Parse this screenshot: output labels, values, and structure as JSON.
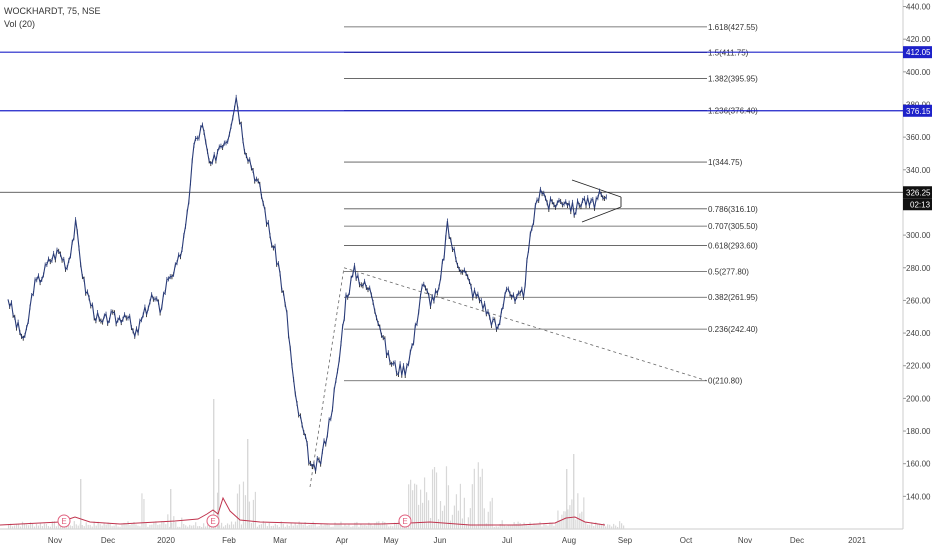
{
  "header": {
    "title": "WOCKHARDT, 75, NSE",
    "indicator": "Vol (20)"
  },
  "colors": {
    "fib": "#555555",
    "blue_line": "#1e22c9",
    "candle_up": "#2a3c78",
    "candle_down": "#111111",
    "volume": "#d8d8d8",
    "volume_ma": "#c0334d",
    "event_marker": "#e0607e",
    "price_tag": "#111111"
  },
  "chart_data": {
    "type": "line",
    "ylim": [
      120,
      444
    ],
    "y_ticks": [
      140,
      160,
      180,
      200,
      220,
      240,
      260,
      280,
      300,
      320,
      340,
      360,
      380,
      400,
      420,
      440
    ],
    "y_tick_labels": [
      "140.00",
      "160.00",
      "180.00",
      "200.00",
      "220.00",
      "240.00",
      "260.00",
      "280.00",
      "300.00",
      "320.00",
      "340.00",
      "360.00",
      "380.00",
      "400.00",
      "420.00",
      "440.00"
    ],
    "x_labels": [
      "Nov",
      "Dec",
      "2020",
      "Feb",
      "Mar",
      "Apr",
      "May",
      "Jun",
      "Jul",
      "Aug",
      "Sep",
      "Oct",
      "Nov",
      "Dec",
      "2021"
    ],
    "series": [
      {
        "x": [
          "Oct-24",
          "Oct-29",
          "Nov-04",
          "Nov-08",
          "Nov-13",
          "Nov-18",
          "Nov-22",
          "Nov-28",
          "Dec-03",
          "Dec-08",
          "Dec-13",
          "Dec-18",
          "Dec-23",
          "Dec-28",
          "Jan-02",
          "Jan-07",
          "Jan-10",
          "Jan-14",
          "Jan-17",
          "Jan-21",
          "Jan-24",
          "Jan-28",
          "Feb-01",
          "Feb-05",
          "Feb-10",
          "Feb-14",
          "Feb-18",
          "Feb-22",
          "Feb-26",
          "Mar-02",
          "Mar-05",
          "Mar-08",
          "Mar-11",
          "Mar-14",
          "Mar-18",
          "Mar-22",
          "Mar-26",
          "Mar-31",
          "Apr-03",
          "Apr-07",
          "Apr-12",
          "Apr-18",
          "Apr-24",
          "May-01",
          "May-05",
          "May-10",
          "May-15",
          "May-20",
          "May-25",
          "May-30",
          "Jun-04",
          "Jun-08",
          "Jun-13",
          "Jun-17",
          "Jun-22",
          "Jun-26",
          "Jul-01",
          "Jul-06",
          "Jul-11",
          "Jul-16",
          "Jul-21",
          "Jul-26",
          "Jul-31",
          "Aug-03",
          "Aug-06",
          "Aug-10",
          "Aug-13",
          "Aug-16",
          "Aug-20",
          "Aug-22",
          "Aug-24",
          "Aug-26"
        ],
        "values": [
          262,
          245,
          235,
          268,
          275,
          285,
          290,
          281,
          306,
          270,
          255,
          245,
          250,
          248,
          253,
          237,
          250,
          262,
          255,
          275,
          280,
          302,
          355,
          366,
          340,
          355,
          360,
          385,
          355,
          340,
          325,
          300,
          282,
          250,
          200,
          178,
          155,
          162,
          185,
          215,
          262,
          278,
          270,
          265,
          245,
          225,
          218,
          218,
          235,
          270,
          260,
          265,
          305,
          285,
          278,
          265,
          260,
          250,
          242,
          270,
          258,
          265,
          305,
          330,
          318,
          320,
          322,
          315,
          322,
          318,
          323,
          320
        ]
      }
    ],
    "volume_note": "volume bars with 20-period moving average",
    "fib_levels": [
      {
        "label": "1.618(427.55)",
        "value": 427.55
      },
      {
        "label": "1.5(411.75)",
        "value": 411.75
      },
      {
        "label": "1.382(395.95)",
        "value": 395.95
      },
      {
        "label": "1.236(376.40)",
        "value": 376.4
      },
      {
        "label": "1(344.75)",
        "value": 344.75
      },
      {
        "label": "0.786(316.10)",
        "value": 316.1
      },
      {
        "label": "0.707(305.50)",
        "value": 305.5
      },
      {
        "label": "0.618(293.60)",
        "value": 293.6
      },
      {
        "label": "0.5(277.80)",
        "value": 277.8
      },
      {
        "label": "0.382(261.95)",
        "value": 261.95
      },
      {
        "label": "0.236(242.40)",
        "value": 242.4
      },
      {
        "label": "0(210.80)",
        "value": 210.8
      }
    ],
    "horizontal_lines": [
      {
        "value": 412.05,
        "label": "412.05"
      },
      {
        "value": 376.15,
        "label": "376.15"
      }
    ],
    "last_price": {
      "value": 326.25,
      "label": "326.25",
      "countdown": "02:13"
    },
    "event_markers": [
      "E",
      "E",
      "E"
    ]
  }
}
